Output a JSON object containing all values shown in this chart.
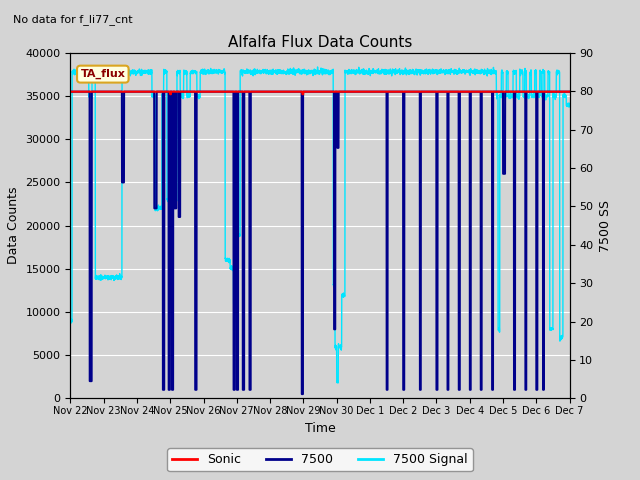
{
  "title": "Alfalfa Flux Data Counts",
  "subtitle": "No data for f_li77_cnt",
  "xlabel": "Time",
  "ylabel_left": "Data Counts",
  "ylabel_right": "7500 SS",
  "annotation": "TA_flux",
  "ylim_left": [
    0,
    40000
  ],
  "ylim_right": [
    0,
    90
  ],
  "bg_color": "#d4d4d4",
  "sonic_color": "#ff0000",
  "flux7500_color": "#00008b",
  "signal7500_color": "#00e5ff",
  "x_tick_labels": [
    "Nov 22",
    "Nov 23",
    "Nov 24",
    "Nov 25",
    "Nov 26",
    "Nov 27",
    "Nov 28",
    "Nov 29",
    "Nov 30",
    "Dec 1",
    "Dec 2",
    "Dec 3",
    "Dec 4",
    "Dec 5",
    "Dec 6",
    "Dec 7"
  ],
  "yticks_left": [
    0,
    5000,
    10000,
    15000,
    20000,
    25000,
    30000,
    35000,
    40000
  ],
  "yticks_right": [
    0,
    10,
    20,
    30,
    40,
    50,
    60,
    70,
    80,
    90
  ]
}
